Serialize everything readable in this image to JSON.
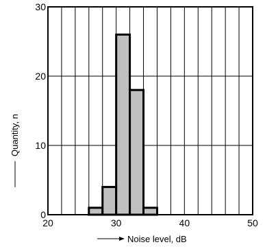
{
  "chart_data": {
    "type": "bar",
    "histogram": true,
    "bins": [
      {
        "start": 26,
        "end": 28,
        "count": 1
      },
      {
        "start": 28,
        "end": 30,
        "count": 4
      },
      {
        "start": 30,
        "end": 32,
        "count": 26
      },
      {
        "start": 32,
        "end": 34,
        "count": 18
      },
      {
        "start": 34,
        "end": 36,
        "count": 1
      }
    ],
    "xlabel": "Noise level, dB",
    "ylabel": "Quantity, n",
    "xlim": [
      20,
      50
    ],
    "ylim": [
      0,
      30
    ],
    "x_ticks": [
      20,
      30,
      40,
      50
    ],
    "y_ticks": [
      0,
      10,
      20,
      30
    ],
    "minor_x_step": 2,
    "grid": true,
    "bar_color": "#c0c0c0",
    "edge_color": "#000000"
  }
}
